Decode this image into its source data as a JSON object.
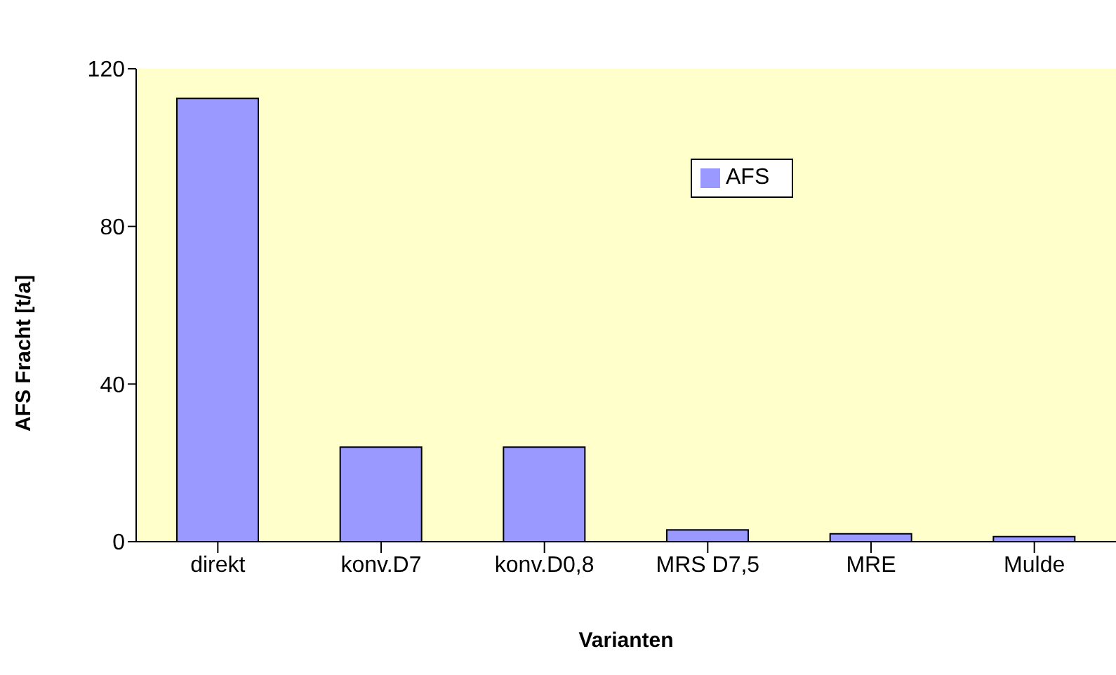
{
  "chart_data": {
    "type": "bar",
    "xlabel": "Varianten",
    "ylabel": "AFS Fracht [t/a]",
    "categories": [
      "direkt",
      "konv.D7",
      "konv.D0,8",
      "MRS D7,5",
      "MRE",
      "Mulde"
    ],
    "series": [
      {
        "name": "AFS",
        "color": "#9999ff",
        "values": [
          112.5,
          24,
          24,
          3,
          2,
          1.3
        ]
      }
    ],
    "ylim": [
      0,
      120
    ],
    "yticks": [
      0,
      40,
      80,
      120
    ],
    "grid": false,
    "legend": "top right"
  }
}
